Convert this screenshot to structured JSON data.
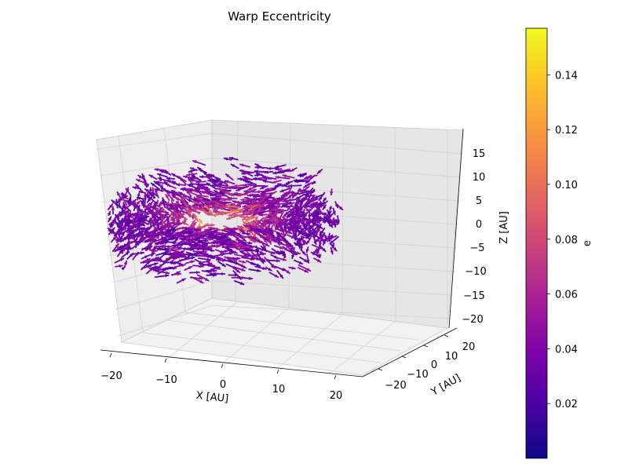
{
  "chart_data": {
    "type": "quiver3d",
    "title": "Warp Eccentricity",
    "xlabel": "X [AU]",
    "ylabel": "Y [AU]",
    "zlabel": "Z [AU]",
    "x_ticks": [
      "−20",
      "−10",
      "0",
      "10",
      "20"
    ],
    "y_ticks": [
      "−20",
      "−10",
      "0",
      "10",
      "20"
    ],
    "z_ticks": [
      "15",
      "10",
      "5",
      "0",
      "−5",
      "−10",
      "−15",
      "−20"
    ],
    "xlim": [
      -22,
      22
    ],
    "ylim": [
      -22,
      22
    ],
    "zlim": [
      -21,
      18
    ],
    "colorbar": {
      "label": "e",
      "colormap": "plasma",
      "range": [
        0.0,
        0.157
      ],
      "ticks": [
        "0.14",
        "0.12",
        "0.10",
        "0.08",
        "0.06",
        "0.04",
        "0.02"
      ],
      "tick_values": [
        0.14,
        0.12,
        0.1,
        0.08,
        0.06,
        0.04,
        0.02
      ]
    },
    "distribution": {
      "shape": "warped-ring",
      "inner_radius_au": 4,
      "outer_radius_au": 22,
      "e_inner": 0.12,
      "e_outer": 0.03
    },
    "grid": true
  }
}
